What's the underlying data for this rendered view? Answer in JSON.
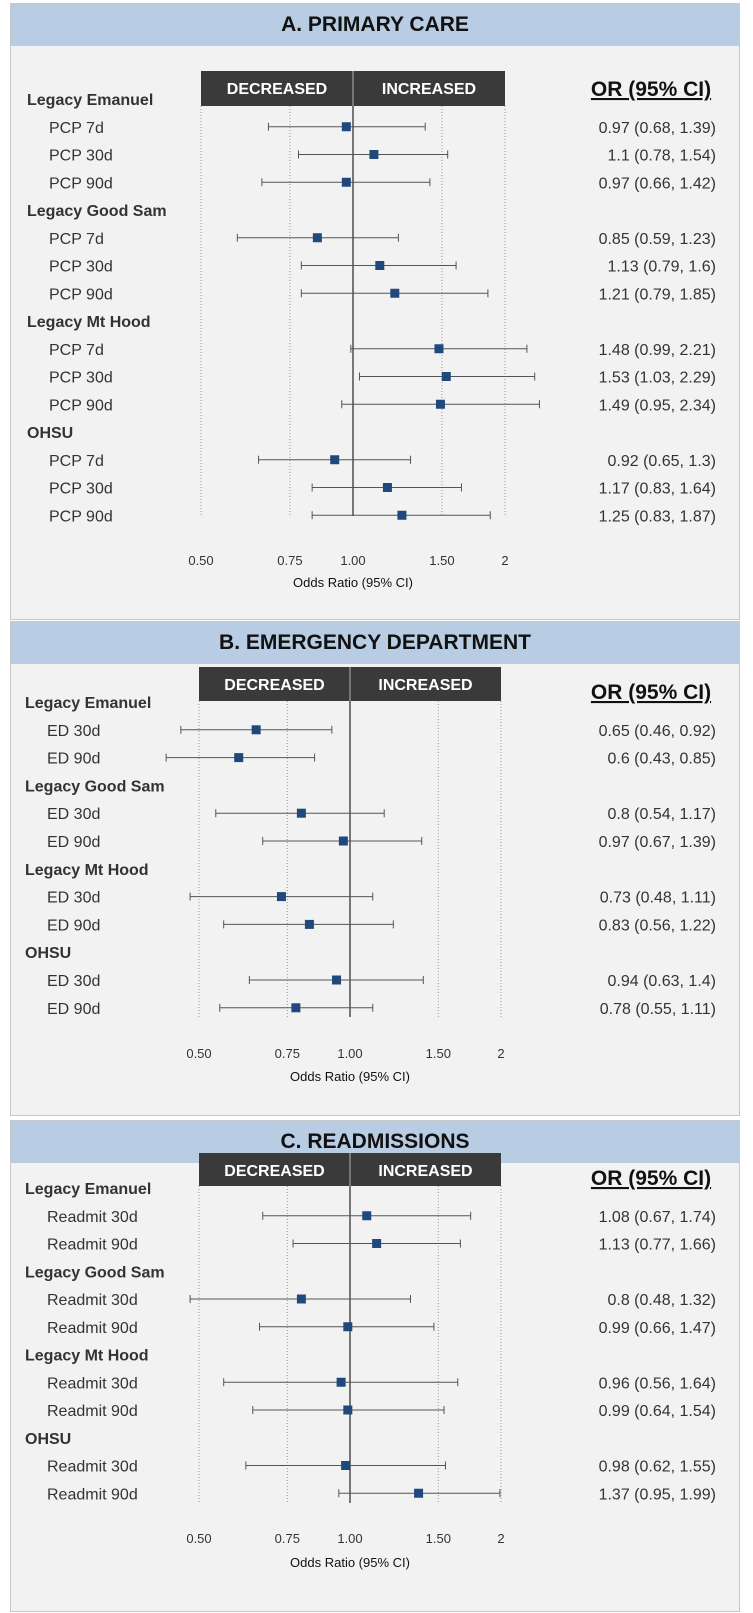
{
  "labels": {
    "decreased": "DECREASED",
    "increased": "INCREASED",
    "or_header": "OR (95% CI)"
  },
  "colors": {
    "marker": "#1f497d",
    "band": "#3a3a3a",
    "header_bg": "#b8cce4",
    "panel_bg": "#f2f2f2"
  },
  "chart_data": [
    {
      "type": "scatter",
      "title": "A. PRIMARY CARE",
      "xlabel": "Odds Ratio (95% CI)",
      "ylabel": "",
      "xscale": "log",
      "xticks": [
        0.5,
        0.75,
        1.0,
        1.5,
        2
      ],
      "xtick_labels": [
        "0.50",
        "0.75",
        "1.00",
        "1.50",
        "2"
      ],
      "xlim": [
        0.5,
        2
      ],
      "groups": [
        {
          "name": "Legacy Emanuel",
          "rows": [
            {
              "label": "PCP 7d",
              "or": 0.97,
              "lo": 0.68,
              "hi": 1.39,
              "text": "0.97 (0.68, 1.39)"
            },
            {
              "label": "PCP 30d",
              "or": 1.1,
              "lo": 0.78,
              "hi": 1.54,
              "text": "1.1 (0.78, 1.54)"
            },
            {
              "label": "PCP 90d",
              "or": 0.97,
              "lo": 0.66,
              "hi": 1.42,
              "text": "0.97 (0.66, 1.42)"
            }
          ]
        },
        {
          "name": "Legacy Good Sam",
          "rows": [
            {
              "label": "PCP 7d",
              "or": 0.85,
              "lo": 0.59,
              "hi": 1.23,
              "text": "0.85 (0.59, 1.23)"
            },
            {
              "label": "PCP 30d",
              "or": 1.13,
              "lo": 0.79,
              "hi": 1.6,
              "text": "1.13 (0.79, 1.6)"
            },
            {
              "label": "PCP 90d",
              "or": 1.21,
              "lo": 0.79,
              "hi": 1.85,
              "text": "1.21 (0.79, 1.85)"
            }
          ]
        },
        {
          "name": "Legacy Mt Hood",
          "rows": [
            {
              "label": "PCP 7d",
              "or": 1.48,
              "lo": 0.99,
              "hi": 2.21,
              "text": "1.48 (0.99, 2.21)"
            },
            {
              "label": "PCP 30d",
              "or": 1.53,
              "lo": 1.03,
              "hi": 2.29,
              "text": "1.53 (1.03, 2.29)"
            },
            {
              "label": "PCP 90d",
              "or": 1.49,
              "lo": 0.95,
              "hi": 2.34,
              "text": "1.49 (0.95, 2.34)"
            }
          ]
        },
        {
          "name": "OHSU",
          "rows": [
            {
              "label": "PCP 7d",
              "or": 0.92,
              "lo": 0.65,
              "hi": 1.3,
              "text": "0.92 (0.65, 1.3)"
            },
            {
              "label": "PCP 30d",
              "or": 1.17,
              "lo": 0.83,
              "hi": 1.64,
              "text": "1.17 (0.83, 1.64)"
            },
            {
              "label": "PCP 90d",
              "or": 1.25,
              "lo": 0.83,
              "hi": 1.87,
              "text": "1.25 (0.83, 1.87)"
            }
          ]
        }
      ]
    },
    {
      "type": "scatter",
      "title": "B. EMERGENCY DEPARTMENT",
      "xlabel": "Odds Ratio (95% CI)",
      "ylabel": "",
      "xscale": "log",
      "xticks": [
        0.5,
        0.75,
        1.0,
        1.5,
        2
      ],
      "xtick_labels": [
        "0.50",
        "0.75",
        "1.00",
        "1.50",
        "2"
      ],
      "xlim": [
        0.5,
        2
      ],
      "groups": [
        {
          "name": "Legacy Emanuel",
          "rows": [
            {
              "label": "ED 30d",
              "or": 0.65,
              "lo": 0.46,
              "hi": 0.92,
              "text": "0.65 (0.46, 0.92)"
            },
            {
              "label": "ED 90d",
              "or": 0.6,
              "lo": 0.43,
              "hi": 0.85,
              "text": "0.6 (0.43, 0.85)"
            }
          ]
        },
        {
          "name": "Legacy Good Sam",
          "rows": [
            {
              "label": "ED 30d",
              "or": 0.8,
              "lo": 0.54,
              "hi": 1.17,
              "text": "0.8 (0.54, 1.17)"
            },
            {
              "label": "ED 90d",
              "or": 0.97,
              "lo": 0.67,
              "hi": 1.39,
              "text": "0.97 (0.67, 1.39)"
            }
          ]
        },
        {
          "name": "Legacy Mt Hood",
          "rows": [
            {
              "label": "ED 30d",
              "or": 0.73,
              "lo": 0.48,
              "hi": 1.11,
              "text": "0.73 (0.48, 1.11)"
            },
            {
              "label": "ED 90d",
              "or": 0.83,
              "lo": 0.56,
              "hi": 1.22,
              "text": "0.83 (0.56, 1.22)"
            }
          ]
        },
        {
          "name": "OHSU",
          "rows": [
            {
              "label": "ED 30d",
              "or": 0.94,
              "lo": 0.63,
              "hi": 1.4,
              "text": "0.94 (0.63, 1.4)"
            },
            {
              "label": "ED 90d",
              "or": 0.78,
              "lo": 0.55,
              "hi": 1.11,
              "text": "0.78 (0.55, 1.11)"
            }
          ]
        }
      ]
    },
    {
      "type": "scatter",
      "title": "C. READMISSIONS",
      "xlabel": "Odds Ratio (95% CI)",
      "ylabel": "",
      "xscale": "log",
      "xticks": [
        0.5,
        0.75,
        1.0,
        1.5,
        2
      ],
      "xtick_labels": [
        "0.50",
        "0.75",
        "1.00",
        "1.50",
        "2"
      ],
      "xlim": [
        0.5,
        2
      ],
      "groups": [
        {
          "name": "Legacy Emanuel",
          "rows": [
            {
              "label": "Readmit 30d",
              "or": 1.08,
              "lo": 0.67,
              "hi": 1.74,
              "text": "1.08 (0.67, 1.74)"
            },
            {
              "label": "Readmit 90d",
              "or": 1.13,
              "lo": 0.77,
              "hi": 1.66,
              "text": "1.13 (0.77, 1.66)"
            }
          ]
        },
        {
          "name": "Legacy Good Sam",
          "rows": [
            {
              "label": "Readmit 30d",
              "or": 0.8,
              "lo": 0.48,
              "hi": 1.32,
              "text": "0.8 (0.48, 1.32)"
            },
            {
              "label": "Readmit 90d",
              "or": 0.99,
              "lo": 0.66,
              "hi": 1.47,
              "text": "0.99 (0.66, 1.47)"
            }
          ]
        },
        {
          "name": "Legacy Mt Hood",
          "rows": [
            {
              "label": "Readmit 30d",
              "or": 0.96,
              "lo": 0.56,
              "hi": 1.64,
              "text": "0.96 (0.56, 1.64)"
            },
            {
              "label": "Readmit 90d",
              "or": 0.99,
              "lo": 0.64,
              "hi": 1.54,
              "text": "0.99 (0.64, 1.54)"
            }
          ]
        },
        {
          "name": "OHSU",
          "rows": [
            {
              "label": "Readmit 30d",
              "or": 0.98,
              "lo": 0.62,
              "hi": 1.55,
              "text": "0.98 (0.62, 1.55)"
            },
            {
              "label": "Readmit 90d",
              "or": 1.37,
              "lo": 0.95,
              "hi": 1.99,
              "text": "1.37 (0.95, 1.99)"
            }
          ]
        }
      ]
    }
  ]
}
